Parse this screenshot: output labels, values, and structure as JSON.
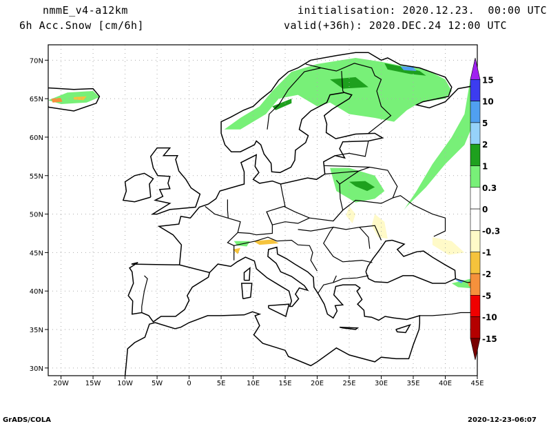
{
  "header": {
    "model": "nmmE_v4-a12km",
    "field": "6h Acc.Snow [cm/6h]",
    "init": "initialisation: 2020.12.23.  00:00 UTC",
    "valid": "valid(+36h): 2020.DEC.24 12:00 UTC"
  },
  "map": {
    "lon_range": [
      -22,
      45
    ],
    "lat_range": [
      29,
      72
    ],
    "lon_ticks": [
      {
        "v": -20,
        "label": "20W"
      },
      {
        "v": -15,
        "label": "15W"
      },
      {
        "v": -10,
        "label": "10W"
      },
      {
        "v": -5,
        "label": "5W"
      },
      {
        "v": 0,
        "label": "0"
      },
      {
        "v": 5,
        "label": "5E"
      },
      {
        "v": 10,
        "label": "10E"
      },
      {
        "v": 15,
        "label": "15E"
      },
      {
        "v": 20,
        "label": "20E"
      },
      {
        "v": 25,
        "label": "25E"
      },
      {
        "v": 30,
        "label": "30E"
      },
      {
        "v": 35,
        "label": "35E"
      },
      {
        "v": 40,
        "label": "40E"
      },
      {
        "v": 45,
        "label": "45E"
      }
    ],
    "lat_ticks": [
      {
        "v": 30,
        "label": "30N"
      },
      {
        "v": 35,
        "label": "35N"
      },
      {
        "v": 40,
        "label": "40N"
      },
      {
        "v": 45,
        "label": "45N"
      },
      {
        "v": 50,
        "label": "50N"
      },
      {
        "v": 55,
        "label": "55N"
      },
      {
        "v": 60,
        "label": "60N"
      },
      {
        "v": 65,
        "label": "65N"
      },
      {
        "v": 70,
        "label": "70N"
      }
    ]
  },
  "colorbar": {
    "labels": [
      "15",
      "10",
      "5",
      "2",
      "1",
      "0.3",
      "0",
      "-0.3",
      "-1",
      "-2",
      "-5",
      "-10",
      "-15"
    ],
    "colors": [
      "#a020f0",
      "#3c3cf0",
      "#50a0f0",
      "#96d2fa",
      "#1ea01e",
      "#78f078",
      "#ffffff",
      "#ffffff",
      "#fffac8",
      "#f5c33c",
      "#f5913c",
      "#f00000",
      "#b40000",
      "#780000"
    ]
  },
  "fill_colors": {
    "light_green": "#78f078",
    "dark_green": "#1ea01e",
    "light_blue": "#96d2fa",
    "blue": "#50a0f0",
    "pale_yellow": "#fffac8",
    "yellow": "#f5c33c",
    "orange": "#f5913c"
  },
  "footer": {
    "left": "GrADS/COLA",
    "right": "2020-12-23-06:07"
  }
}
